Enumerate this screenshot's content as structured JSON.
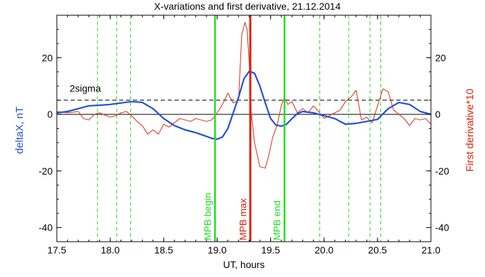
{
  "chart_data": {
    "type": "line",
    "title": "X-variations and first derivative, 21.12.2014",
    "xlabel": "UT, hours",
    "ylabel_left": "deltaX, nT",
    "ylabel_right": "First derivative*10",
    "xlim": [
      17.5,
      21.0
    ],
    "ylim": [
      -45,
      35
    ],
    "xticks": [
      "17.5",
      "18.0",
      "18.5",
      "19.0",
      "19.5",
      "20.0",
      "20.5",
      "21.0"
    ],
    "xtick_values": [
      17.5,
      18.0,
      18.5,
      19.0,
      19.5,
      20.0,
      20.5,
      21.0
    ],
    "yticks": [
      "20",
      "0",
      "-20",
      "-40"
    ],
    "ytick_values": [
      20,
      0,
      -20,
      -40
    ],
    "threshold": {
      "label": "2sigma",
      "value": 5
    },
    "zero_line": 0,
    "colors": {
      "deltaX": "#1f4fd6",
      "derivative": "#d62a0f",
      "vlines": "#22dd22",
      "max_line": "#e02010",
      "axis": "#000000",
      "left_label": "#1f4fd6",
      "right_label": "#d62a0f"
    },
    "markers": [
      {
        "label": "MPB begin",
        "x": 18.98,
        "color": "#22dd22"
      },
      {
        "label": "MPB max",
        "x": 19.31,
        "color": "#e02010"
      },
      {
        "label": "MPB end",
        "x": 19.63,
        "color": "#22dd22"
      }
    ],
    "dashed_vlines": [
      17.88,
      18.06,
      18.19,
      19.96,
      20.23,
      20.43,
      20.53
    ],
    "series": [
      {
        "name": "deltaX",
        "x": [
          17.5,
          17.6,
          17.7,
          17.8,
          17.9,
          18.0,
          18.1,
          18.2,
          18.3,
          18.4,
          18.5,
          18.6,
          18.7,
          18.8,
          18.9,
          18.95,
          19.0,
          19.05,
          19.1,
          19.15,
          19.2,
          19.25,
          19.3,
          19.35,
          19.4,
          19.45,
          19.5,
          19.55,
          19.6,
          19.65,
          19.7,
          19.75,
          19.8,
          19.9,
          20.0,
          20.1,
          20.2,
          20.3,
          20.4,
          20.5,
          20.6,
          20.7,
          20.8,
          20.9,
          21.0
        ],
        "values": [
          0.5,
          1.0,
          2.0,
          3.0,
          3.2,
          3.5,
          4.0,
          4.5,
          4.2,
          2.0,
          -1.5,
          -4.0,
          -5.5,
          -6.5,
          -7.8,
          -8.5,
          -8.8,
          -8.0,
          -5.0,
          0.5,
          6.0,
          12.5,
          15.2,
          14.5,
          10.0,
          4.0,
          -1.5,
          -3.8,
          -4.2,
          -3.5,
          -1.5,
          0.2,
          1.0,
          0.5,
          -0.5,
          -1.5,
          -3.5,
          -3.2,
          -2.5,
          -1.8,
          2.0,
          4.2,
          3.5,
          1.0,
          0.0
        ]
      },
      {
        "name": "First derivative*10",
        "x": [
          17.5,
          17.6,
          17.7,
          17.75,
          17.8,
          17.85,
          17.9,
          18.0,
          18.05,
          18.1,
          18.15,
          18.2,
          18.25,
          18.3,
          18.35,
          18.4,
          18.45,
          18.5,
          18.55,
          18.6,
          18.65,
          18.7,
          18.75,
          18.8,
          18.85,
          18.9,
          18.95,
          19.0,
          19.05,
          19.1,
          19.15,
          19.2,
          19.23,
          19.26,
          19.28,
          19.3,
          19.32,
          19.35,
          19.4,
          19.45,
          19.48,
          19.52,
          19.56,
          19.6,
          19.63,
          19.66,
          19.7,
          19.75,
          19.8,
          19.85,
          19.9,
          19.95,
          20.0,
          20.05,
          20.1,
          20.15,
          20.2,
          20.25,
          20.3,
          20.35,
          20.4,
          20.45,
          20.5,
          20.55,
          20.6,
          20.65,
          20.7,
          20.75,
          20.8,
          20.85,
          20.9,
          20.95,
          21.0
        ],
        "values": [
          1.0,
          0.5,
          1.0,
          -1.5,
          -2.0,
          0.0,
          0.5,
          -1.0,
          -0.5,
          0.5,
          1.0,
          -0.5,
          -2.5,
          -4.0,
          -7.0,
          -5.5,
          -7.0,
          -3.5,
          -4.5,
          -3.0,
          -1.5,
          -2.0,
          -2.5,
          -1.5,
          -2.0,
          -2.5,
          -2.0,
          0.5,
          3.5,
          7.5,
          4.0,
          5.0,
          28.0,
          32.5,
          30.0,
          18.0,
          0.0,
          -10.0,
          -18.5,
          -19.0,
          -15.0,
          -8.0,
          -4.0,
          3.0,
          6.0,
          3.5,
          4.5,
          0.5,
          2.0,
          0.5,
          3.0,
          1.0,
          -1.5,
          -0.5,
          0.5,
          1.5,
          4.5,
          6.0,
          8.5,
          -2.0,
          -1.0,
          -3.0,
          3.0,
          9.0,
          8.0,
          1.5,
          0.0,
          -1.5,
          -4.0,
          -1.5,
          -2.0,
          -1.5,
          -3.5
        ]
      }
    ]
  }
}
